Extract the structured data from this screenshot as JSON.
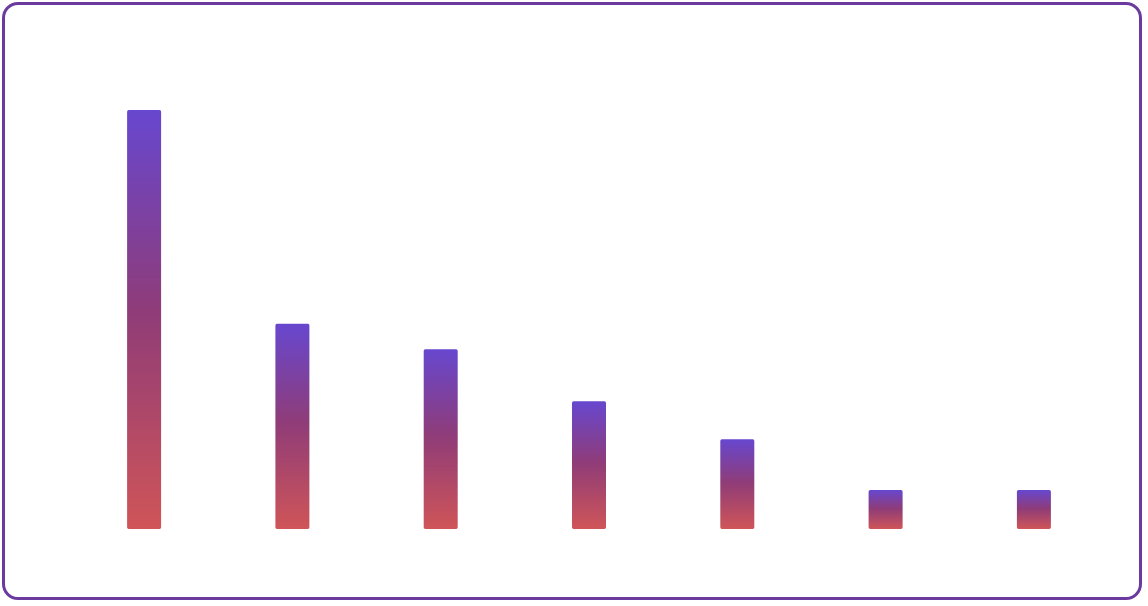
{
  "chart_data": {
    "type": "bar",
    "title": "",
    "xlabel": "",
    "ylabel": "",
    "categories": [
      "",
      "",
      "",
      "",
      "",
      "",
      ""
    ],
    "values": [
      100,
      49,
      42.9,
      30.5,
      21.4,
      9.3,
      9.3
    ],
    "ylim": [
      0,
      100
    ],
    "grid": false,
    "legend": "none",
    "colors": {
      "bar_top": "#6747cf",
      "bar_mid": "#8f3c78",
      "bar_bottom": "#cf5558",
      "border": "#6a3a9e"
    }
  }
}
